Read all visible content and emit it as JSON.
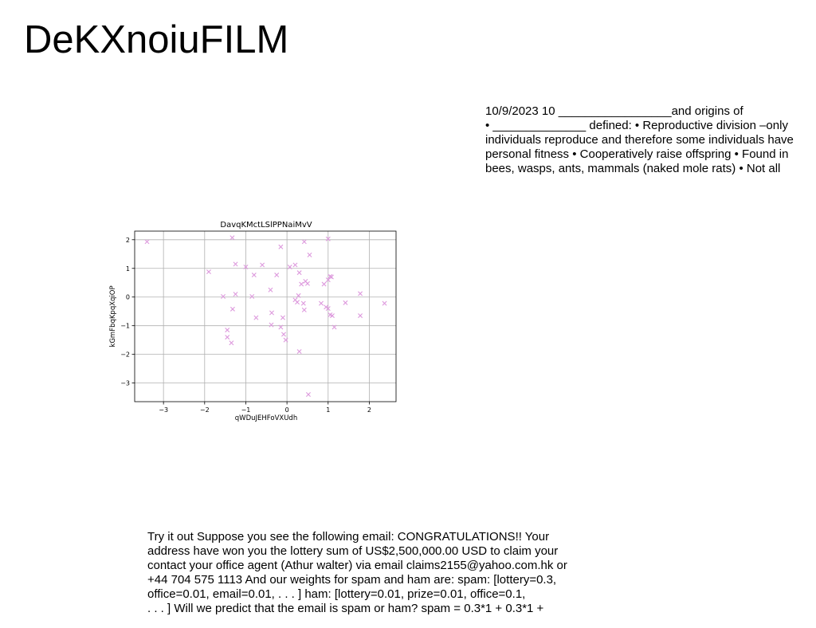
{
  "title": "DeKXnoiuFILM",
  "block1": {
    "lines": [
      "10/9/2023 10 _________________and origins of",
      "• ______________ defined: • Reproductive division –only",
      "individuals reproduce and therefore some individuals have",
      "personal fitness • Cooperatively raise offspring • Found in",
      "bees, wasps, ants, mammals (naked mole rats) • Not all"
    ]
  },
  "block2": {
    "lines": [
      "Try it out Suppose you see the following email: CONGRATULATIONS!! Your",
      "address have won you the lottery sum of US$2,500,000.00 USD to claim your",
      "contact your office agent (Athur walter) via email claims2155@yahoo.com.hk or",
      "+44 704 575 1113 And our weights for spam and ham are: spam: [lottery=0.3,",
      "office=0.01, email=0.01, . . . ] ham: [lottery=0.01, prize=0.01, office=0.1,",
      ". . . ] Will we predict that the email is spam or ham? spam = 0.3*1 + 0.3*1 +"
    ]
  },
  "chart_data": {
    "type": "scatter",
    "title": "DavqKMctLSlPPNaiMvV",
    "xlabel": "qWDuJEHFoVXUdh",
    "ylabel": "kGmFbqKpqXqiOP",
    "xlim": [
      -3.7,
      2.65
    ],
    "ylim": [
      -3.65,
      2.3
    ],
    "xticks": [
      -3,
      -2,
      -1,
      0,
      1,
      2
    ],
    "yticks": [
      2,
      1,
      0,
      -1,
      -2,
      -3
    ],
    "grid": true,
    "marker": "x",
    "color": "#dd99dd",
    "points": [
      [
        -3.4,
        1.93
      ],
      [
        -1.33,
        2.07
      ],
      [
        0.42,
        1.93
      ],
      [
        1.0,
        2.03
      ],
      [
        0.55,
        1.47
      ],
      [
        -1.9,
        0.88
      ],
      [
        -1.25,
        1.15
      ],
      [
        -1.0,
        1.05
      ],
      [
        -0.6,
        1.12
      ],
      [
        -0.8,
        0.77
      ],
      [
        -0.25,
        0.77
      ],
      [
        -0.15,
        1.75
      ],
      [
        0.07,
        1.05
      ],
      [
        0.2,
        1.12
      ],
      [
        0.3,
        0.85
      ],
      [
        0.35,
        0.45
      ],
      [
        0.45,
        0.55
      ],
      [
        0.5,
        0.47
      ],
      [
        0.9,
        0.45
      ],
      [
        1.0,
        0.6
      ],
      [
        1.05,
        0.72
      ],
      [
        1.08,
        0.7
      ],
      [
        -1.55,
        0.02
      ],
      [
        -1.25,
        0.1
      ],
      [
        -0.85,
        0.02
      ],
      [
        -0.4,
        0.25
      ],
      [
        0.2,
        -0.1
      ],
      [
        0.25,
        -0.18
      ],
      [
        0.28,
        0.05
      ],
      [
        0.4,
        -0.22
      ],
      [
        0.42,
        -0.45
      ],
      [
        0.83,
        -0.22
      ],
      [
        0.95,
        -0.35
      ],
      [
        1.0,
        -0.4
      ],
      [
        1.05,
        -0.62
      ],
      [
        1.1,
        -0.65
      ],
      [
        1.42,
        -0.2
      ],
      [
        1.78,
        0.12
      ],
      [
        1.78,
        -0.65
      ],
      [
        2.37,
        -0.22
      ],
      [
        -1.32,
        -0.42
      ],
      [
        -0.75,
        -0.72
      ],
      [
        -0.37,
        -0.55
      ],
      [
        -0.38,
        -0.97
      ],
      [
        -0.15,
        -1.05
      ],
      [
        -0.1,
        -0.72
      ],
      [
        -0.08,
        -1.3
      ],
      [
        -0.03,
        -1.5
      ],
      [
        1.15,
        -1.05
      ],
      [
        -1.45,
        -1.15
      ],
      [
        -1.45,
        -1.4
      ],
      [
        -1.35,
        -1.6
      ],
      [
        0.3,
        -1.9
      ],
      [
        0.52,
        -3.4
      ]
    ]
  }
}
